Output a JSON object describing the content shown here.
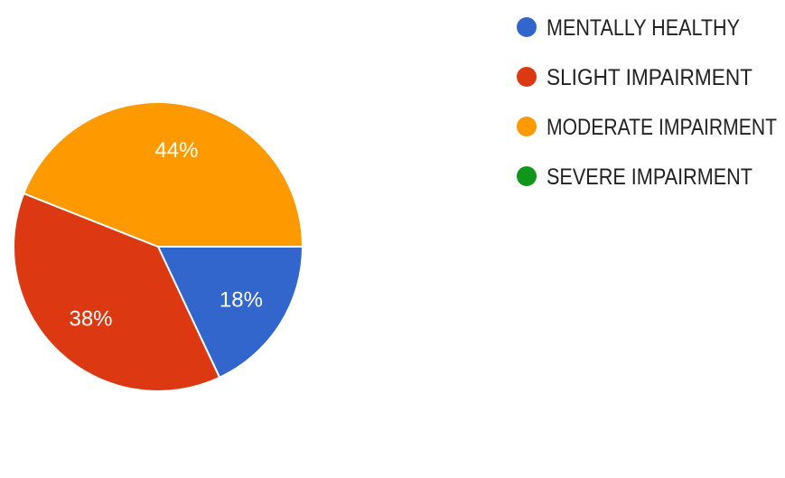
{
  "chart_data": {
    "type": "pie",
    "title": "",
    "legend_position": "right",
    "slices": [
      {
        "label": "MENTALLY HEALTHY",
        "value": 18,
        "value_label": "18%",
        "color": "#3366cc"
      },
      {
        "label": "SLIGHT IMPAIRMENT",
        "value": 38,
        "value_label": "38%",
        "color": "#dc3912"
      },
      {
        "label": "MODERATE IMPAIRMENT",
        "value": 44,
        "value_label": "44%",
        "color": "#ff9900"
      },
      {
        "label": "SEVERE IMPAIRMENT",
        "value": 0,
        "value_label": "",
        "color": "#109618"
      }
    ]
  }
}
